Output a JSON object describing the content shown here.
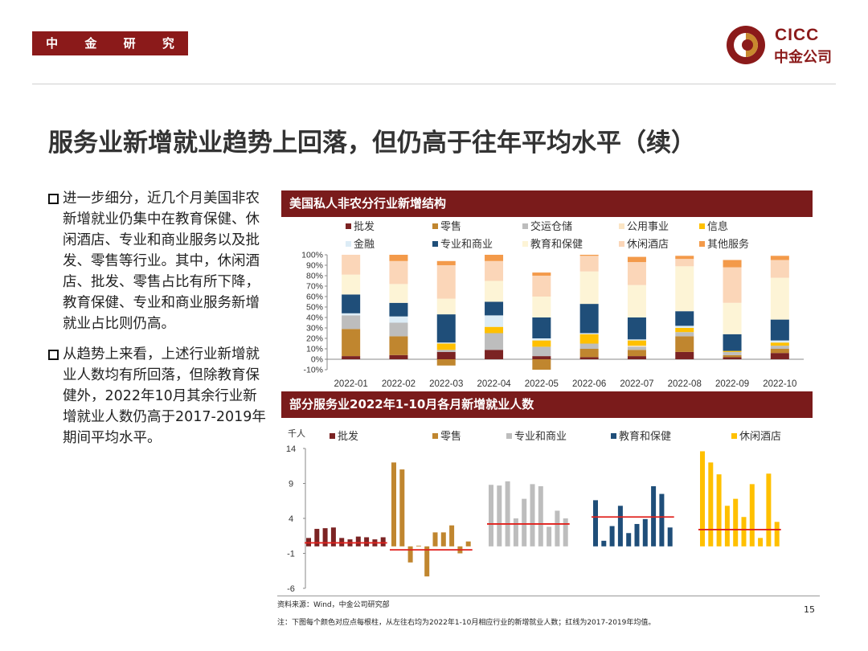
{
  "header": {
    "brand_tag": "中 金 研 究 部",
    "logo_en": "CICC",
    "logo_cn": "中金公司"
  },
  "title": "服务业新增就业趋势上回落，但仍高于往年平均水平（续）",
  "bullets": [
    "进一步细分，近几个月美国非农新增就业仍集中在教育保健、休闲酒店、专业和商业服务以及批发、零售等行业。其中，休闲酒店、批发、零售占比有所下降，教育保健、专业和商业服务新增就业占比则仍高。",
    "从趋势上来看，上述行业新增就业人数均有所回落，但除教育保健外，2022年10月其余行业新增就业人数仍高于2017-2019年期间平均水平。"
  ],
  "colors": {
    "brand": "#8b1a1a",
    "header_bar": "#7a1b1b"
  },
  "chart_data": [
    {
      "type": "bar",
      "stacked": true,
      "title": "美国私人非农分行业新增结构",
      "categories": [
        "2022-01",
        "2022-02",
        "2022-03",
        "2022-04",
        "2022-05",
        "2022-06",
        "2022-07",
        "2022-08",
        "2022-09",
        "2022-10"
      ],
      "ylim": [
        -10,
        100
      ],
      "yticks": [
        -10,
        0,
        10,
        20,
        30,
        40,
        50,
        60,
        70,
        80,
        90,
        100
      ],
      "ytick_labels": [
        "-10%",
        "0%",
        "10%",
        "20%",
        "30%",
        "40%",
        "50%",
        "60%",
        "70%",
        "80%",
        "90%",
        "100%"
      ],
      "series": [
        {
          "name": "批发",
          "color": "#7b2323",
          "values": [
            3,
            4,
            7,
            9,
            3,
            2,
            3,
            7,
            2,
            6
          ]
        },
        {
          "name": "零售",
          "color": "#c0862f",
          "values": [
            26,
            18,
            -6,
            0,
            -10,
            8,
            6,
            15,
            2,
            4
          ]
        },
        {
          "name": "交运仓储",
          "color": "#bdbdbd",
          "values": [
            13,
            13,
            2,
            16,
            9,
            5,
            3,
            4,
            3,
            3
          ]
        },
        {
          "name": "公用事业",
          "color": "#fbe5c4",
          "values": [
            0,
            0,
            0,
            0,
            0,
            0,
            1,
            0,
            0,
            0
          ]
        },
        {
          "name": "信息",
          "color": "#ffc000",
          "values": [
            0,
            0,
            6,
            6,
            6,
            9,
            5,
            4,
            1,
            3
          ]
        },
        {
          "name": "金融",
          "color": "#dcecf6",
          "values": [
            2,
            6,
            1,
            11,
            2,
            1,
            1,
            2,
            0,
            2
          ]
        },
        {
          "name": "专业和商业",
          "color": "#1f4e79",
          "values": [
            18,
            13,
            27,
            13,
            20,
            28,
            21,
            14,
            16,
            20
          ]
        },
        {
          "name": "教育和保健",
          "color": "#fdf4d6",
          "values": [
            19,
            18,
            15,
            20,
            20,
            31,
            31,
            43,
            30,
            40
          ]
        },
        {
          "name": "休闲酒店",
          "color": "#fbd6b8",
          "values": [
            19,
            22,
            32,
            19,
            20,
            15,
            22,
            7,
            34,
            17
          ]
        },
        {
          "name": "其他服务",
          "color": "#f39a4a",
          "values": [
            0,
            6,
            4,
            6,
            3,
            1,
            5,
            3,
            7,
            4
          ]
        }
      ]
    },
    {
      "type": "bar",
      "title": "部分服务业2022年1-10月各月新增就业人数",
      "ylabel": "千人",
      "ylim": [
        -6,
        14
      ],
      "yticks": [
        14,
        9,
        4,
        -1,
        -6
      ],
      "series": [
        {
          "name": "批发",
          "color": "#7b2323",
          "avg_2017_2019": 0.5,
          "values": [
            1.2,
            2.5,
            2.6,
            2.7,
            1.2,
            1.0,
            1.4,
            1.3,
            1.0,
            1.3
          ]
        },
        {
          "name": "零售",
          "color": "#c0862f",
          "avg_2017_2019": -0.5,
          "values": [
            12.0,
            11.0,
            -2.3,
            0.1,
            -4.3,
            2.0,
            2.0,
            3.0,
            -1.0,
            0.7
          ]
        },
        {
          "name": "专业和商业",
          "color": "#bdbdbd",
          "avg_2017_2019": 3.2,
          "values": [
            8.8,
            8.7,
            9.3,
            4.0,
            6.8,
            8.9,
            8.6,
            2.8,
            5.1,
            4.0
          ]
        },
        {
          "name": "教育和保健",
          "color": "#1f4e79",
          "avg_2017_2019": 4.2,
          "values": [
            6.6,
            0.8,
            2.9,
            5.8,
            1.9,
            3.2,
            3.9,
            8.6,
            7.5,
            2.7
          ]
        },
        {
          "name": "休闲酒店",
          "color": "#ffc000",
          "avg_2017_2019": 2.4,
          "values": [
            13.6,
            12.0,
            10.3,
            5.8,
            6.8,
            4.2,
            8.9,
            1.2,
            10.4,
            3.5
          ]
        }
      ]
    }
  ],
  "footer": {
    "source": "资料来源：Wind，中金公司研究部",
    "note": "注：下图每个颜色对应点每根柱，从左往右均为2022年1-10月相应行业的新增就业人数；红线为2017-2019年均值。",
    "page_number": "15"
  }
}
